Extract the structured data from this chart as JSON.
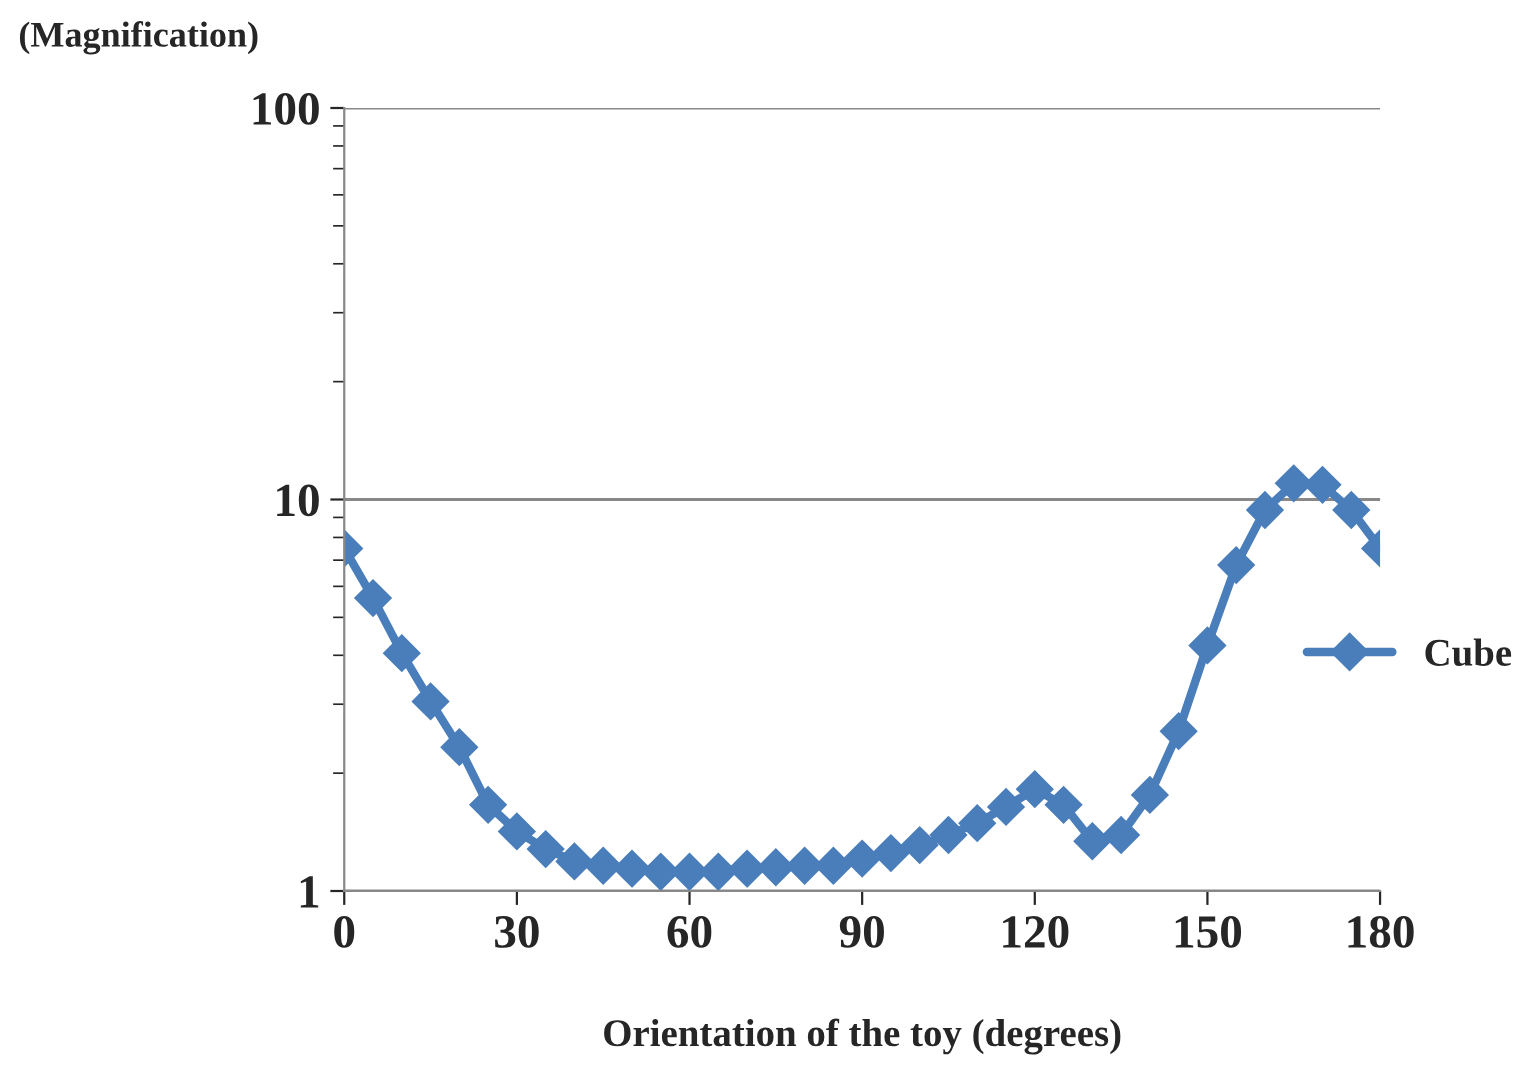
{
  "chart_data": {
    "type": "line",
    "ylabel": "(Magnification)",
    "xlabel": "Orientation of the toy (degrees)",
    "x": [
      0,
      5,
      10,
      15,
      20,
      25,
      30,
      35,
      40,
      45,
      50,
      55,
      60,
      65,
      70,
      75,
      80,
      85,
      90,
      95,
      100,
      105,
      110,
      115,
      120,
      125,
      130,
      135,
      140,
      145,
      150,
      155,
      160,
      165,
      170,
      175,
      180
    ],
    "series": [
      {
        "name": "Cube",
        "color": "#4a7ebb",
        "values": [
          7.5,
          5.6,
          4.05,
          3.05,
          2.33,
          1.66,
          1.42,
          1.28,
          1.19,
          1.16,
          1.14,
          1.12,
          1.12,
          1.12,
          1.14,
          1.15,
          1.16,
          1.16,
          1.21,
          1.25,
          1.31,
          1.39,
          1.49,
          1.64,
          1.82,
          1.66,
          1.34,
          1.39,
          1.76,
          2.56,
          4.24,
          6.8,
          9.4,
          11.0,
          10.9,
          9.4,
          7.5
        ]
      }
    ],
    "xlim": [
      0,
      180
    ],
    "xticks": [
      0,
      30,
      60,
      90,
      120,
      150,
      180
    ],
    "ylim": [
      1,
      100
    ],
    "yticks": [
      1,
      10,
      100
    ],
    "log": "y",
    "grid": "y",
    "legend": "right",
    "marker": "diamond",
    "line_style": "solid"
  }
}
